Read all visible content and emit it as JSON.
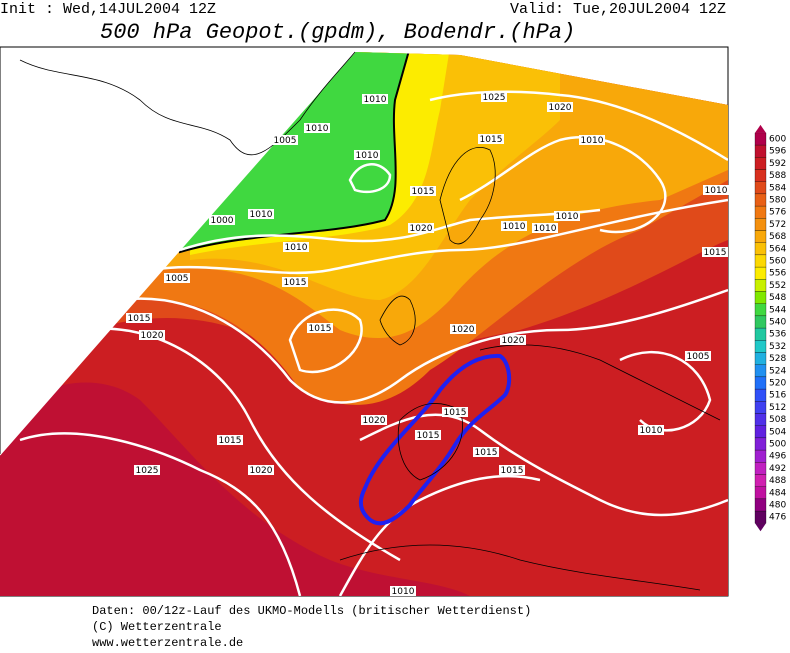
{
  "header": {
    "init": "Init : Wed,14JUL2004 12Z",
    "valid": "Valid: Tue,20JUL2004 12Z",
    "title": "500 hPa Geopot.(gpdm), Bodendr.(hPa)"
  },
  "map": {
    "isobar_labels": [
      "1010",
      "1010",
      "1005",
      "1010",
      "1025",
      "1020",
      "1015",
      "1010",
      "1010",
      "1015",
      "1010",
      "1010",
      "1010",
      "1020",
      "1010",
      "1000",
      "1010",
      "1005",
      "1015",
      "1015",
      "1015",
      "1020",
      "1015",
      "1020",
      "1020",
      "1005",
      "1020",
      "1015",
      "1015",
      "1010",
      "1015",
      "1015",
      "1015",
      "1025",
      "1020",
      "1010"
    ]
  },
  "colorbar": {
    "levels": [
      600,
      596,
      592,
      588,
      584,
      580,
      576,
      572,
      568,
      564,
      560,
      556,
      552,
      548,
      544,
      540,
      536,
      532,
      528,
      524,
      520,
      516,
      512,
      508,
      504,
      500,
      496,
      492,
      488,
      484,
      480,
      476
    ],
    "colors": [
      "#b0004a",
      "#c0102e",
      "#cc1e22",
      "#d8301e",
      "#e04a1a",
      "#e86016",
      "#f07812",
      "#f4900e",
      "#f8a80a",
      "#fac006",
      "#fcd802",
      "#fcec00",
      "#c8f000",
      "#80e800",
      "#40d840",
      "#30c860",
      "#20c8a0",
      "#20c8c8",
      "#20b0e0",
      "#2090f0",
      "#2070f8",
      "#3050f8",
      "#4040f0",
      "#5030e8",
      "#6020e0",
      "#8020d8",
      "#a020d0",
      "#c020c0",
      "#d020b0",
      "#c010a0",
      "#900080",
      "#600060"
    ]
  },
  "footer": {
    "line1": "Daten: 00/12z-Lauf des UKMO-Modells (britischer Wetterdienst)",
    "line2": "(C) Wetterzentrale",
    "line3": "www.wetterzentrale.de"
  }
}
